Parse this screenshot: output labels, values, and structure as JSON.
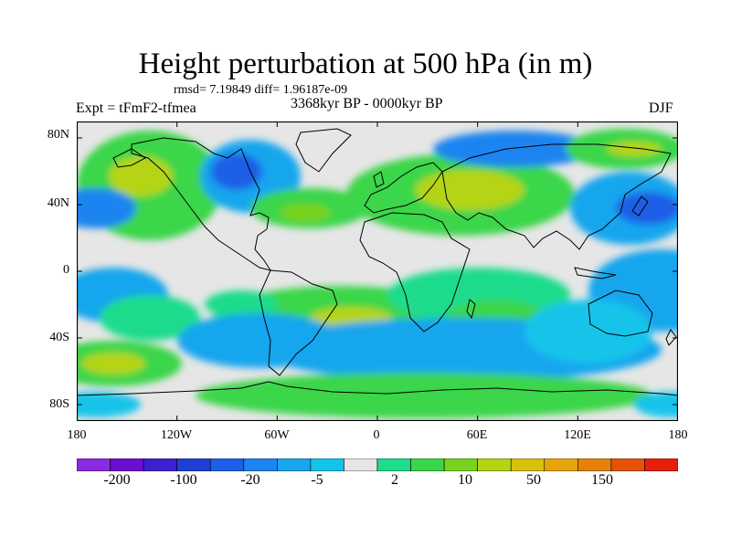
{
  "title": "Height perturbation at 500 hPa (in m)",
  "stats": "rmsd= 7.19849 diff= 1.96187e-09",
  "experiment": "Expt = tFmF2-tfmea",
  "period": "3368kyr BP - 0000kyr BP",
  "season": "DJF",
  "map": {
    "projection": "cylindrical equidistant",
    "lat_labels": [
      "80N",
      "40N",
      "0",
      "40S",
      "80S"
    ],
    "lon_labels": [
      "180",
      "120W",
      "60W",
      "0",
      "60E",
      "120E",
      "180"
    ]
  },
  "colorbar": {
    "colors": [
      "#8a2be2",
      "#6a0fd1",
      "#3f1fd0",
      "#1f3fd4",
      "#1f5ee6",
      "#1e84f0",
      "#18a6ee",
      "#12c4ea",
      "#e6e6e6",
      "#1edc8c",
      "#3ad64a",
      "#78d21e",
      "#b6d412",
      "#d8c00c",
      "#e6a40a",
      "#e6820a",
      "#e6520a",
      "#e61e0a"
    ],
    "labels": [
      "-200",
      "-100",
      "-20",
      "-5",
      "2",
      "10",
      "50",
      "150"
    ]
  }
}
